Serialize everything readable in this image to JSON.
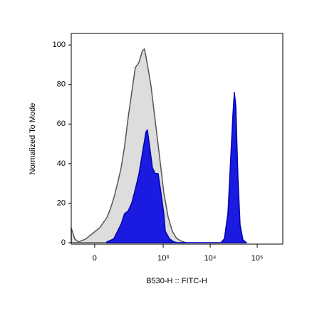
{
  "chart_data": {
    "type": "area",
    "xlabel": "B530-H :: FITC-H",
    "ylabel": "Normalized To Mode",
    "xscale": "biex",
    "xlim": [
      -99,
      350000
    ],
    "ylim": [
      -0.7,
      105.8
    ],
    "xticks": [
      0,
      {
        "value": 1000,
        "label": "10³"
      },
      {
        "value": 10000,
        "label": "10⁴"
      },
      {
        "value": 100000,
        "label": "10⁵"
      }
    ],
    "yticks": [
      0,
      20,
      40,
      60,
      80,
      100
    ],
    "series": [
      {
        "color": "#dddddd",
        "edge": "#555555",
        "x": [
          -99,
          -80,
          -62,
          -33,
          -7,
          17,
          44,
          59,
          76,
          96,
          118,
          143,
          173,
          209,
          251,
          300,
          359,
          399,
          460,
          549,
          678,
          837,
          1032,
          1274,
          1568,
          1932,
          2471,
          3157
        ],
        "values": [
          7.5,
          2,
          0.4,
          1.8,
          4.7,
          7.5,
          12.6,
          17,
          22.7,
          30,
          37.8,
          48.6,
          63,
          76,
          88.5,
          91,
          97,
          98,
          90,
          79.5,
          61.5,
          43.5,
          25.5,
          13,
          5.8,
          2.2,
          0.7,
          0
        ]
      },
      {
        "color": "#1a1ae0",
        "edge": "#0000b0",
        "x": [
          44,
          76,
          96,
          118,
          143,
          173,
          209,
          251,
          300,
          359,
          429,
          460,
          511,
          589,
          678,
          779,
          897,
          1032,
          1107,
          1364,
          1684,
          2074,
          16820,
          20030,
          23850,
          27440,
          30460,
          32630,
          35000,
          38840,
          43140,
          49600,
          59040
        ],
        "values": [
          0.4,
          2,
          5.8,
          9.4,
          14.7,
          16,
          20,
          27,
          34.5,
          45.3,
          56,
          57,
          49,
          38,
          35,
          35,
          25.5,
          14.7,
          5.8,
          2,
          0.4,
          0,
          0,
          2,
          15,
          43.5,
          65,
          76,
          69,
          33,
          9,
          1.5,
          0
        ]
      }
    ]
  }
}
